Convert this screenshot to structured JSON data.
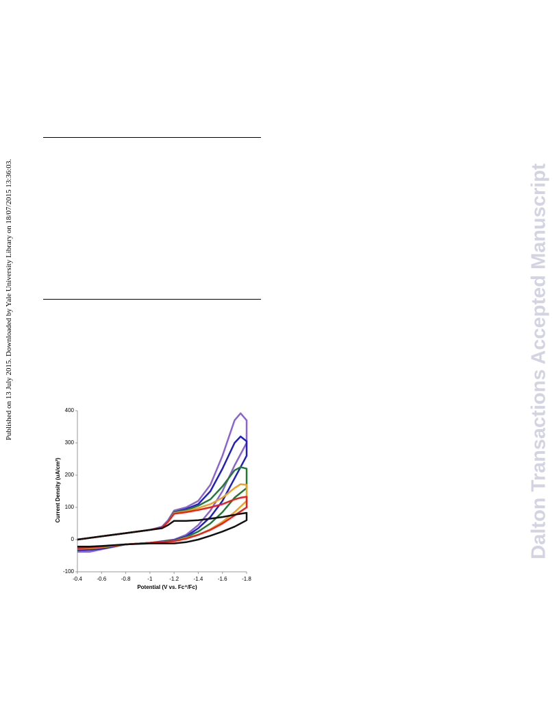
{
  "side_note": "Published on 13 July 2015. Downloaded by Yale University Library on 18/07/2015 13:36:03.",
  "watermark": "Dalton Transactions Accepted Manuscript",
  "chart_data": {
    "type": "line",
    "x_label": "Potential (V vs. Fc⁺/Fc)",
    "y_label": "Current Density (uA/cm²)",
    "x": [
      -0.4,
      -0.6,
      -0.8,
      -1.0,
      -1.1,
      -1.15,
      -1.2,
      -1.3,
      -1.4,
      -1.5,
      -1.6,
      -1.7,
      -1.75,
      -1.8,
      -1.8,
      -1.7,
      -1.6,
      -1.5,
      -1.4,
      -1.3,
      -1.2,
      -1.0,
      -0.8,
      -0.6,
      -0.5,
      -0.4
    ],
    "xlim": [
      -0.4,
      -1.8
    ],
    "xticks": [
      -0.4,
      -0.6,
      -0.8,
      -1,
      -1.2,
      -1.4,
      -1.6,
      -1.8
    ],
    "ylim": [
      -100,
      400
    ],
    "yticks": [
      -100,
      0,
      100,
      200,
      300,
      400
    ],
    "series": [
      {
        "color": "#8a63d8",
        "values": [
          0,
          10,
          20,
          30,
          40,
          60,
          90,
          100,
          120,
          170,
          260,
          370,
          392,
          370,
          300,
          230,
          150,
          90,
          45,
          15,
          0,
          -10,
          -15,
          -30,
          -38,
          -38
        ]
      },
      {
        "color": "#1f1fc8",
        "values": [
          0,
          10,
          20,
          30,
          38,
          55,
          85,
          95,
          110,
          150,
          220,
          300,
          320,
          305,
          260,
          190,
          120,
          70,
          35,
          10,
          -2,
          -10,
          -15,
          -28,
          -32,
          -33
        ]
      },
      {
        "color": "#1e7a2e",
        "values": [
          0,
          10,
          20,
          30,
          37,
          55,
          85,
          92,
          105,
          125,
          165,
          215,
          225,
          220,
          160,
          130,
          85,
          50,
          25,
          8,
          -3,
          -10,
          -15,
          -25,
          -28,
          -30
        ]
      },
      {
        "color": "#f0a020",
        "values": [
          0,
          10,
          20,
          30,
          37,
          55,
          82,
          88,
          98,
          110,
          130,
          160,
          172,
          170,
          120,
          85,
          55,
          32,
          15,
          5,
          -5,
          -10,
          -15,
          -24,
          -27,
          -28
        ]
      },
      {
        "color": "#e82020",
        "values": [
          0,
          10,
          20,
          30,
          37,
          55,
          80,
          85,
          92,
          100,
          110,
          125,
          130,
          133,
          100,
          75,
          50,
          30,
          15,
          3,
          -5,
          -10,
          -15,
          -22,
          -25,
          -27
        ]
      },
      {
        "color": "#111111",
        "values": [
          0,
          10,
          20,
          30,
          35,
          45,
          58,
          58,
          60,
          65,
          70,
          77,
          80,
          83,
          60,
          40,
          25,
          12,
          0,
          -8,
          -12,
          -12,
          -15,
          -20,
          -22,
          -22
        ]
      }
    ]
  }
}
